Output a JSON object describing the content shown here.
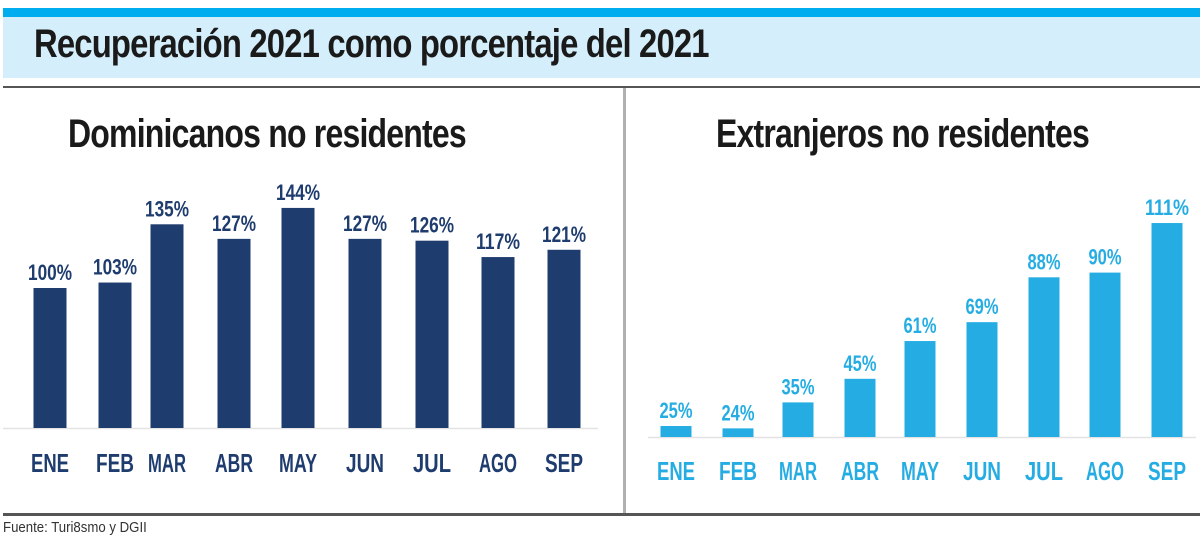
{
  "header": {
    "title": "Recuperación 2021 como porcentaje del 2021"
  },
  "footer": {
    "source": "Fuente: Turi8smo y DGII"
  },
  "colors": {
    "top_bar": "#00aeef",
    "title_band": "#d4eefb",
    "left_series": "#1f3c6e",
    "right_series": "#25ade3"
  },
  "chart_data": [
    {
      "type": "bar",
      "title": "Dominicanos no residentes",
      "categories": [
        "Ene",
        "Feb",
        "Mar",
        "Abr",
        "May",
        "Jun",
        "Jul",
        "Ago",
        "Sep"
      ],
      "values": [
        100,
        103,
        135,
        127,
        144,
        127,
        126,
        117,
        121
      ],
      "labels": [
        "100%",
        "103%",
        "135%",
        "127%",
        "144%",
        "127%",
        "126%",
        "117%",
        "121%"
      ],
      "unit": "%",
      "xlabel": "",
      "ylabel": "",
      "grid": false,
      "color": "#1f3c6e"
    },
    {
      "type": "bar",
      "title": "Extranjeros no residentes",
      "categories": [
        "Ene",
        "Feb",
        "Mar",
        "Abr",
        "May",
        "Jun",
        "Jul",
        "Ago",
        "Sep"
      ],
      "values": [
        25,
        24,
        35,
        45,
        61,
        69,
        88,
        90,
        111
      ],
      "labels": [
        "25%",
        "24%",
        "35%",
        "45%",
        "61%",
        "69%",
        "88%",
        "90%",
        "111%"
      ],
      "unit": "%",
      "xlabel": "",
      "ylabel": "",
      "grid": false,
      "color": "#25ade3"
    }
  ]
}
